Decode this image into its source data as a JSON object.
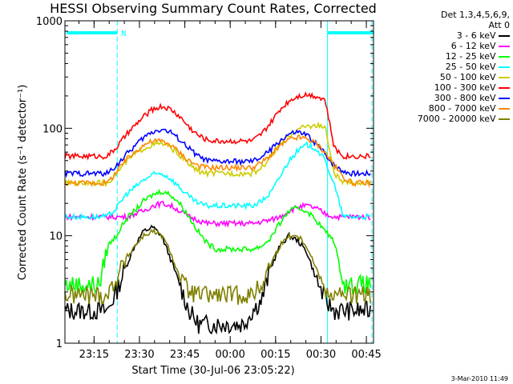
{
  "chart_data": {
    "type": "line",
    "title": "HESSI Observing Summary Count Rates, Corrected",
    "xlabel": "Start Time (30-Jul-06 23:05:22)",
    "ylabel": "Corrected Count Rate (s⁻¹ detector⁻¹)",
    "yscale": "log",
    "ylim": [
      1,
      1000
    ],
    "xlim_minutes": [
      0,
      102
    ],
    "x_tick_labels": [
      "23:15",
      "23:30",
      "23:45",
      "00:00",
      "00:15",
      "00:30",
      "00:45"
    ],
    "x_tick_minutes": [
      9.63,
      24.63,
      39.63,
      54.63,
      69.63,
      84.63,
      99.63
    ],
    "y_tick_labels": [
      "1",
      "10",
      "100",
      "1000"
    ],
    "y_tick_values": [
      1,
      10,
      100,
      1000
    ],
    "legend_title": [
      "Det 1,3,4,5,6,9,",
      "Att 0"
    ],
    "legend_position": "top-right, outside plot",
    "night_marker": "N",
    "timestamp": "3-Mar-2010 11:49",
    "cyan_bars": [
      [
        0.5,
        17.3
      ],
      [
        86.8,
        102
      ]
    ],
    "dashed_lines_minutes": [
      17.3,
      101.5
    ],
    "solid_lines_minutes": [
      86.8
    ],
    "x_minutes": [
      0,
      10,
      11.5,
      14,
      17,
      20,
      23,
      26,
      29,
      32,
      35,
      38,
      41,
      44,
      47,
      50,
      53,
      56,
      59,
      62,
      65,
      68,
      71,
      74,
      77,
      80,
      83,
      86,
      89,
      92,
      95,
      98,
      101
    ],
    "series": [
      {
        "name": "3 - 6 keV",
        "color": "#000000",
        "values": [
          2,
          2,
          2,
          2,
          3,
          5,
          8,
          11,
          12,
          10,
          6,
          3.5,
          2,
          1.5,
          1.5,
          1.5,
          1.5,
          1.5,
          1.5,
          2,
          2.5,
          5,
          8,
          10,
          9,
          7,
          4,
          2.5,
          2,
          2,
          2,
          2,
          2
        ]
      },
      {
        "name": "6 - 12 keV",
        "color": "#ff00ff",
        "values": [
          15,
          15,
          15,
          15,
          15,
          15,
          16,
          17,
          19,
          20,
          19,
          17,
          15,
          14,
          13,
          13,
          13,
          13,
          13,
          13,
          13.5,
          14,
          15,
          17,
          18.5,
          19,
          18,
          16,
          15,
          15,
          15,
          15,
          15
        ]
      },
      {
        "name": "12 - 25 keV",
        "color": "#00ff00",
        "values": [
          3.5,
          3.5,
          3.5,
          8,
          10,
          14,
          17,
          21,
          24,
          26,
          24,
          20,
          15,
          11,
          8.5,
          7.5,
          7.5,
          7.5,
          7.5,
          7.5,
          8,
          9.5,
          13,
          17,
          18,
          17,
          14,
          11,
          9,
          3.5,
          3.5,
          3.5,
          3.5
        ]
      },
      {
        "name": "25 - 50 keV",
        "color": "#00ffff",
        "values": [
          15,
          15,
          15,
          15,
          18,
          24,
          28,
          33,
          37,
          38,
          34,
          28,
          23,
          20,
          19,
          19,
          19,
          19,
          19,
          19,
          21,
          25,
          35,
          50,
          62,
          70,
          65,
          50,
          30,
          15,
          15,
          15,
          15
        ]
      },
      {
        "name": "50 - 100 keV",
        "color": "#cccc00",
        "values": [
          31,
          31,
          31,
          31,
          38,
          48,
          57,
          65,
          70,
          72,
          66,
          56,
          46,
          40,
          38,
          38,
          38,
          38,
          38,
          38,
          43,
          54,
          70,
          85,
          98,
          105,
          106,
          103,
          38,
          31,
          31,
          31,
          31
        ]
      },
      {
        "name": "100 - 300 keV",
        "color": "#ff0000",
        "values": [
          55,
          55,
          55,
          55,
          66,
          85,
          105,
          128,
          150,
          160,
          150,
          128,
          103,
          86,
          78,
          76,
          76,
          76,
          76,
          76,
          88,
          112,
          148,
          180,
          200,
          206,
          200,
          185,
          66,
          55,
          55,
          55,
          55
        ]
      },
      {
        "name": "300 - 800 keV",
        "color": "#0000ff",
        "values": [
          38,
          38,
          38,
          38,
          45,
          56,
          68,
          82,
          93,
          98,
          92,
          78,
          65,
          55,
          50,
          49,
          49,
          49,
          49,
          49,
          54,
          63,
          76,
          88,
          92,
          86,
          72,
          58,
          45,
          40,
          38,
          38,
          38
        ]
      },
      {
        "name": "800 - 7000 keV",
        "color": "#ff8800",
        "values": [
          31,
          31,
          31,
          31,
          39,
          50,
          60,
          70,
          76,
          76,
          70,
          59,
          50,
          45,
          43,
          43,
          43,
          43,
          43,
          43,
          48,
          56,
          68,
          78,
          82,
          80,
          72,
          60,
          45,
          35,
          31,
          31,
          31
        ]
      },
      {
        "name": "7000 - 20000 keV",
        "color": "#808000",
        "values": [
          2.8,
          2.8,
          2.8,
          2.8,
          4,
          6,
          8,
          10,
          11,
          10,
          7,
          4,
          3,
          2.8,
          2.8,
          2.8,
          2.8,
          2.8,
          2.8,
          2.8,
          3.5,
          5.5,
          8,
          10,
          10,
          8,
          5,
          3.2,
          2.8,
          2.8,
          2.8,
          2.8,
          2.8
        ]
      }
    ]
  }
}
